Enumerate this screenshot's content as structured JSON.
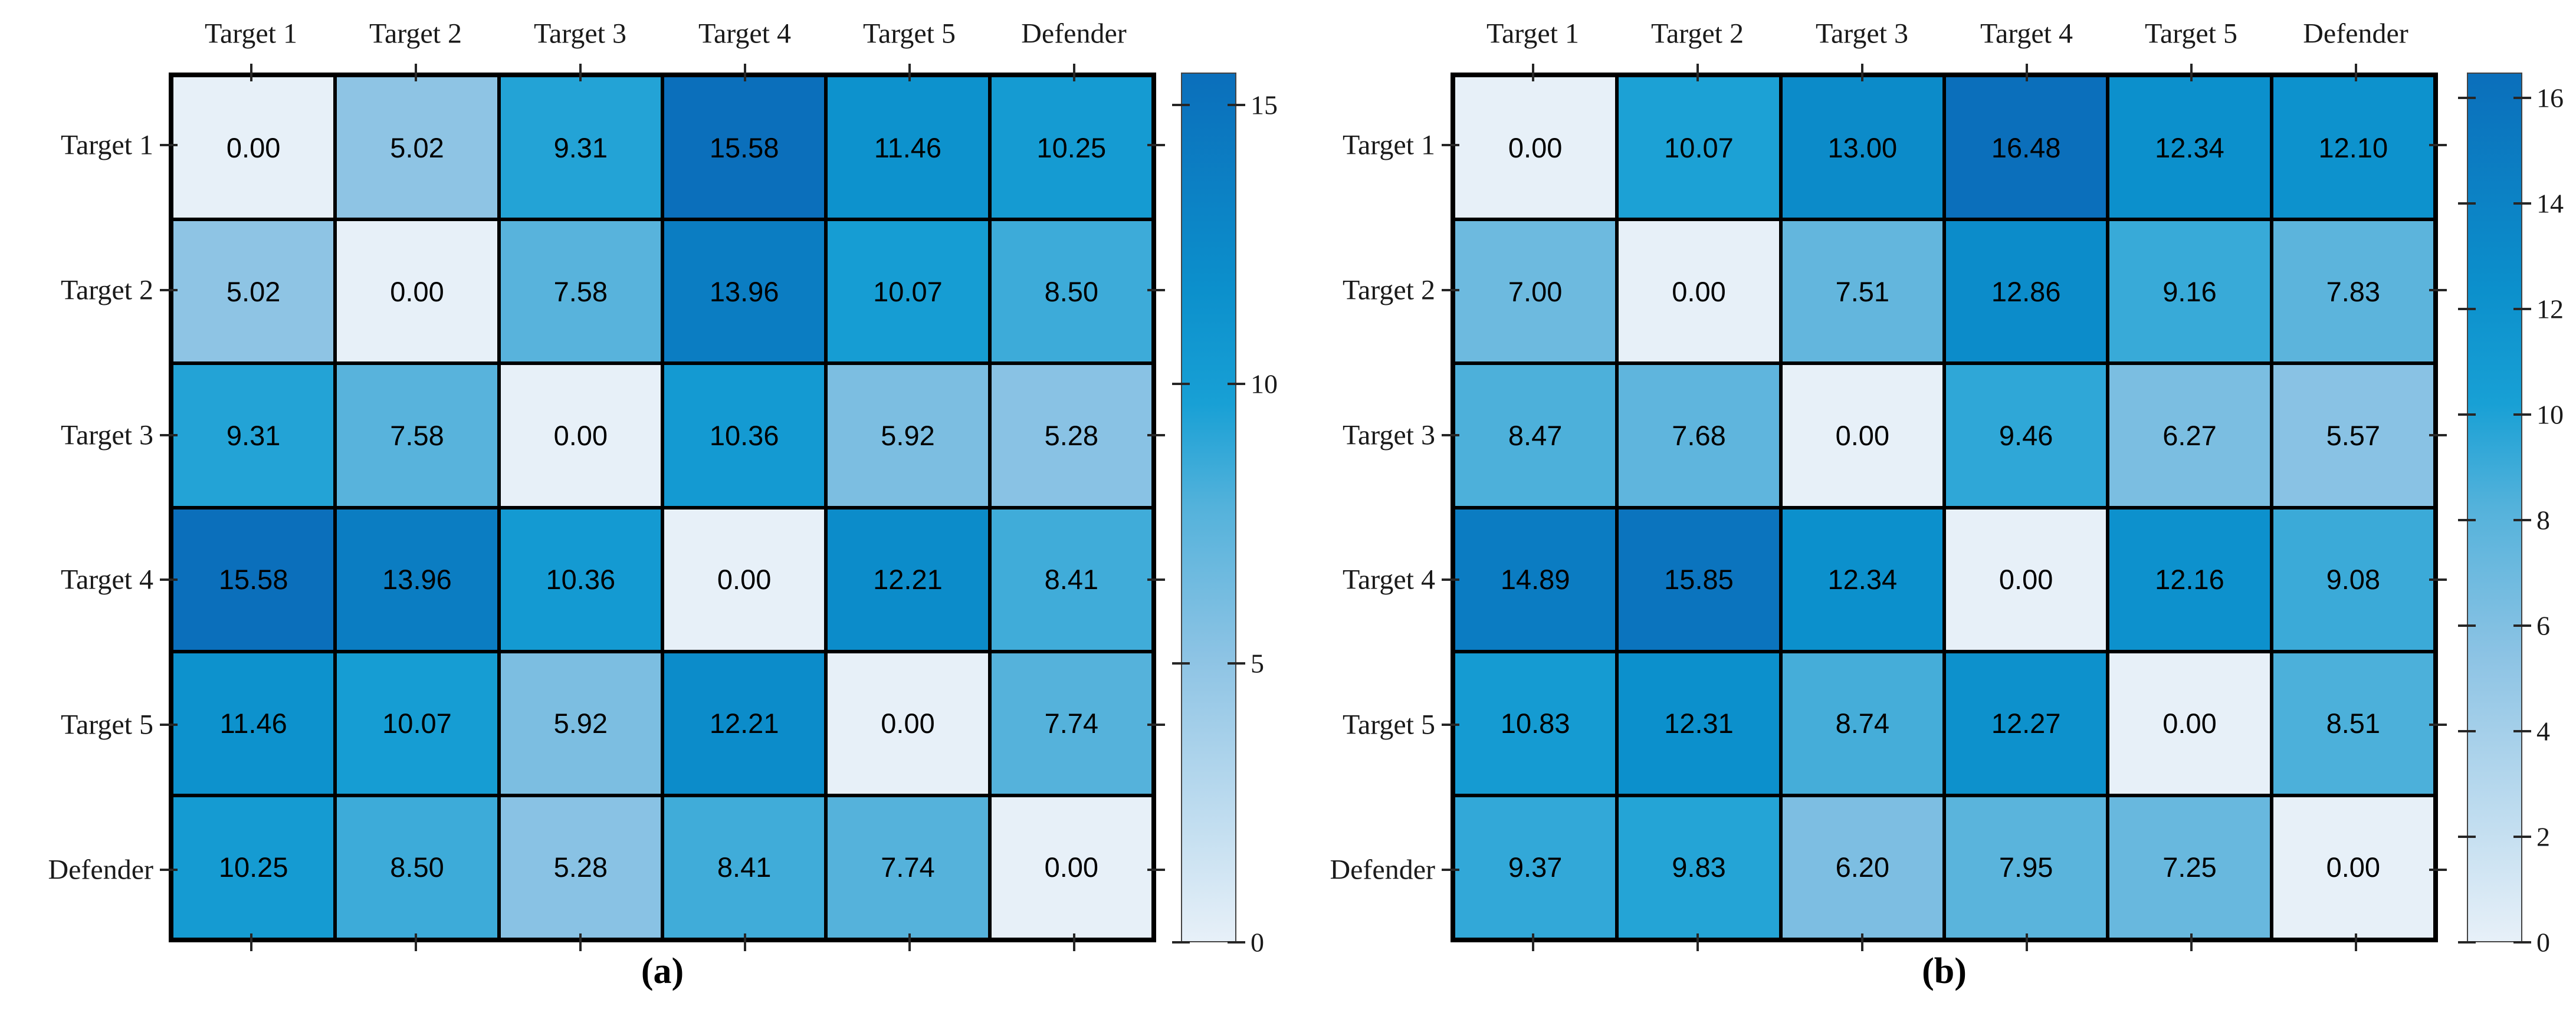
{
  "chart_data": [
    {
      "type": "heatmap",
      "panel_label": "(a)",
      "x_categories": [
        "Target 1",
        "Target 2",
        "Target 3",
        "Target 4",
        "Target 5",
        "Defender"
      ],
      "y_categories": [
        "Target 1",
        "Target 2",
        "Target 3",
        "Target 4",
        "Target 5",
        "Defender"
      ],
      "values": [
        [
          0.0,
          5.02,
          9.31,
          15.58,
          11.46,
          10.25
        ],
        [
          5.02,
          0.0,
          7.58,
          13.96,
          10.07,
          8.5
        ],
        [
          9.31,
          7.58,
          0.0,
          10.36,
          5.92,
          5.28
        ],
        [
          15.58,
          13.96,
          10.36,
          0.0,
          12.21,
          8.41
        ],
        [
          11.46,
          10.07,
          5.92,
          12.21,
          0.0,
          7.74
        ],
        [
          10.25,
          8.5,
          5.28,
          8.41,
          7.74,
          0.0
        ]
      ],
      "vmin": 0,
      "vmax": 15.58,
      "value_decimals": 2,
      "colorbar_ticks": [
        0,
        5,
        10,
        15
      ],
      "legend_position": "right"
    },
    {
      "type": "heatmap",
      "panel_label": "(b)",
      "x_categories": [
        "Target 1",
        "Target 2",
        "Target 3",
        "Target 4",
        "Target 5",
        "Defender"
      ],
      "y_categories": [
        "Target 1",
        "Target 2",
        "Target 3",
        "Target 4",
        "Target 5",
        "Defender"
      ],
      "values": [
        [
          0.0,
          10.07,
          13.0,
          16.48,
          12.34,
          12.1
        ],
        [
          7.0,
          0.0,
          7.51,
          12.86,
          9.16,
          7.83
        ],
        [
          8.47,
          7.68,
          0.0,
          9.46,
          6.27,
          5.57
        ],
        [
          14.89,
          15.85,
          12.34,
          0.0,
          12.16,
          9.08
        ],
        [
          10.83,
          12.31,
          8.74,
          12.27,
          0.0,
          8.51
        ],
        [
          9.37,
          9.83,
          6.2,
          7.95,
          7.25,
          0.0
        ]
      ],
      "vmin": 0,
      "vmax": 16.48,
      "value_decimals": 2,
      "colorbar_ticks": [
        0,
        2,
        4,
        6,
        8,
        10,
        12,
        14,
        16
      ],
      "legend_position": "right"
    }
  ],
  "styles": {
    "colormap_stops": [
      [
        0.0,
        "#e7f0f8"
      ],
      [
        0.33,
        "#8cc3e4"
      ],
      [
        0.5,
        "#54b2db"
      ],
      [
        0.62,
        "#18a0d5"
      ],
      [
        0.75,
        "#0c90cc"
      ],
      [
        1.0,
        "#0b6fbb"
      ]
    ],
    "grid_line_color": "#000000",
    "tick_color": "#262626",
    "label_color": "#1a1a1a"
  }
}
